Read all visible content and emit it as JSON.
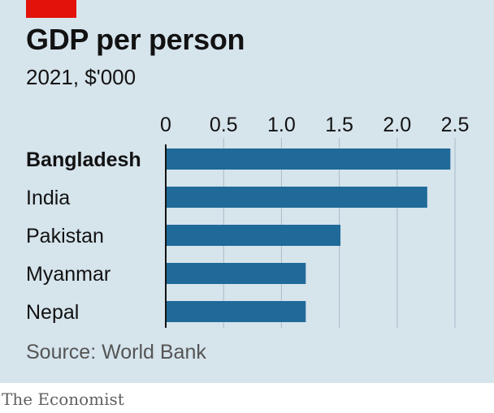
{
  "header": {
    "tag_color": "#e3120b",
    "title": "GDP per person",
    "subtitle": "2021, $'000"
  },
  "footer": {
    "source": "Source: World Bank",
    "brand": "The Economist"
  },
  "chart_data": {
    "type": "bar",
    "orientation": "horizontal",
    "title": "GDP per person",
    "subtitle": "2021, $'000",
    "categories": [
      "Bangladesh",
      "India",
      "Pakistan",
      "Myanmar",
      "Nepal"
    ],
    "highlighted_category": "Bangladesh",
    "values": [
      2.46,
      2.26,
      1.51,
      1.21,
      1.21
    ],
    "xlim": [
      0,
      2.5
    ],
    "ticks": [
      "0",
      "0.5",
      "1.0",
      "1.5",
      "2.0",
      "2.5"
    ],
    "tick_values": [
      0,
      0.5,
      1.0,
      1.5,
      2.0,
      2.5
    ],
    "grid": "vertical",
    "bar_color": "#1f6a99",
    "background": "#d6e4ec"
  }
}
